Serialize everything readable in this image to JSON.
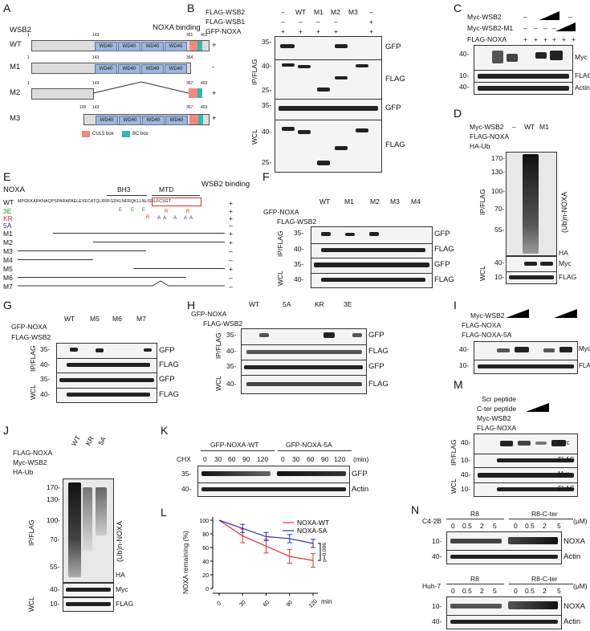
{
  "panels": {
    "A": "A",
    "B": "B",
    "C": "C",
    "D": "D",
    "E": "E",
    "F": "F",
    "G": "G",
    "H": "H",
    "I": "I",
    "J": "J",
    "K": "K",
    "L": "L",
    "M": "M",
    "N": "N"
  },
  "panelA": {
    "title": "WSB2",
    "noxa_binding": "NOXA binding",
    "rows": [
      {
        "name": "WT",
        "start": "1",
        "n143": "143",
        "c": "361",
        "e": "403",
        "bind": "+"
      },
      {
        "name": "M1",
        "start": "1",
        "n143": "143",
        "c": "364",
        "e": "",
        "bind": "-"
      },
      {
        "name": "M2",
        "start": "1",
        "n143": "143",
        "c": "367",
        "e": "403",
        "bind": "+"
      },
      {
        "name": "M3",
        "start": "100",
        "n143": "143",
        "c": "367",
        "e": "403",
        "bind": "+"
      }
    ],
    "wd": "WD40",
    "legend_cul": "CUL5 box",
    "legend_bc": "BC box"
  },
  "panelB": {
    "row1": "FLAG-WSB2",
    "row2": "FLAG-WSB1",
    "row3": "GFP-NOXA",
    "cols": [
      "WT",
      "M1",
      "M2",
      "M3",
      "–"
    ],
    "r1": [
      "–",
      "",
      "",
      "",
      ""
    ],
    "r2": [
      "–",
      "–",
      "–",
      "–",
      "+"
    ],
    "r3": [
      "+",
      "+",
      "+",
      "+",
      "+"
    ],
    "ip": "IP/FLAG",
    "wcl": "WCL",
    "gfp": "GFP",
    "flag": "FLAG",
    "mw": [
      "35-",
      "40-",
      "25-",
      "35-",
      "40-",
      "25-"
    ]
  },
  "panelC": {
    "r1": "Myc-WSB2",
    "r2": "Myc-WSB2-M1",
    "r3": "FLAG-NOXA",
    "myc": "Myc",
    "flag": "FLAG",
    "actin": "Actin",
    "mw": [
      "40-",
      "10-",
      "40-"
    ],
    "signs1": [
      "–",
      "–"
    ],
    "signs2": [
      "–",
      "–",
      "–",
      "–"
    ],
    "signs3": [
      "+",
      "+",
      "+",
      "+",
      "+",
      "+"
    ]
  },
  "panelD": {
    "r1": "Myc-WSB2",
    "r2": "FLAG-NOXA",
    "r3": "HA-Ub",
    "cols": [
      "–",
      "WT",
      "M1"
    ],
    "ip": "IP/FLAG",
    "wcl": "WCL",
    "ub": "(Ub)n-NOXA",
    "ha": "HA",
    "myc": "Myc",
    "flag": "FLAG",
    "mw": [
      "170-",
      "130-",
      "100-",
      "70-",
      "55-",
      "40-",
      "10-"
    ]
  },
  "panelE": {
    "title": "NOXA",
    "bh3": "BH3",
    "mtd": "MTD",
    "wsb2": "WSB2 binding",
    "seq_wt": "MPGKKARKNAQPSPARAPAELEVECATQLRRFGDKLNFRQKLLNLISKLFCSGT",
    "rows": [
      {
        "name": "WT",
        "bind": "+"
      },
      {
        "name": "3E",
        "bind": "+"
      },
      {
        "name": "KR",
        "bind": "+"
      },
      {
        "name": "5A",
        "bind": "–"
      },
      {
        "name": "M1",
        "bind": "+"
      },
      {
        "name": "M2",
        "bind": "+"
      },
      {
        "name": "M3",
        "bind": "–"
      },
      {
        "name": "M4",
        "bind": "–"
      },
      {
        "name": "M5",
        "bind": "+"
      },
      {
        "name": "M6",
        "bind": "–"
      },
      {
        "name": "M7",
        "bind": "–"
      }
    ],
    "e": "E",
    "r": "R",
    "a": "A"
  },
  "panelF": {
    "r1": "GFP-NOXA",
    "r2": "FLAG-WSB2",
    "cols": [
      "WT",
      "M1",
      "M2",
      "M3",
      "M4"
    ],
    "ip": "IP/FLAG",
    "wcl": "WCL",
    "gfp": "GFP",
    "flag": "FLAG",
    "mw": [
      "35-",
      "40-",
      "35-",
      "40-"
    ]
  },
  "panelG": {
    "r1": "GFP-NOXA",
    "r2": "FLAG-WSB2",
    "cols": [
      "WT",
      "M5",
      "M6",
      "M7"
    ],
    "ip": "IP/FLAG",
    "wcl": "WCL",
    "gfp": "GFP",
    "flag": "FLAG",
    "mw": [
      "35-",
      "40-",
      "35-",
      "40-"
    ]
  },
  "panelH": {
    "r1": "GFP-NOXA",
    "r2": "FLAG-WSB2",
    "cols": [
      "WT",
      "5A",
      "KR",
      "3E"
    ],
    "ip": "IP/FLAG",
    "wcl": "WCL",
    "gfp": "GFP",
    "flag": "FLAG",
    "mw": [
      "35-",
      "40-",
      "35-",
      "40-"
    ]
  },
  "panelI": {
    "r1": "Myc-WSB2",
    "r2": "FLAG-NOXA",
    "r3": "FLAG-NOXA-5A",
    "myc": "Myc",
    "flag": "FLAG",
    "actin": "Actin",
    "mw": [
      "40-",
      "10-",
      "40-"
    ]
  },
  "panelJ": {
    "r1": "FLAG-NOXA",
    "r2": "Myc-WSB2",
    "r3": "HA-Ub",
    "cols": [
      "WT",
      "KR",
      "5A"
    ],
    "ip": "IP/FLAG",
    "wcl": "WCL",
    "ub": "(Ub)n-NOXA",
    "ha": "HA",
    "myc": "Myc",
    "flag": "FLAG",
    "mw": [
      "170-",
      "130-",
      "100-",
      "70-",
      "55-",
      "40-",
      "10-"
    ]
  },
  "panelK": {
    "g1": "GFP-NOXA-WT",
    "g2": "GFP-NOXA-5A",
    "chx": "CHX",
    "times": [
      "0",
      "30",
      "60",
      "90",
      "120",
      "0",
      "30",
      "60",
      "90",
      "120"
    ],
    "unit": "(min)",
    "gfp": "GFP",
    "actin": "Actin",
    "mw": [
      "35-",
      "40-"
    ]
  },
  "panelL": {
    "ylabel": "NOXA remaining (%)",
    "xlabel": "min",
    "p": "p=0.006"
  },
  "panelM": {
    "r1": "Scr peptide",
    "r2": "C-ter peptide",
    "r3": "Myc-WSB2",
    "r4": "FLAG-NOXA",
    "ip": "IP/FLAG",
    "wcl": "WCL",
    "myc": "Myc",
    "flag": "FLAG",
    "mw": [
      "40-",
      "10-",
      "40-",
      "10-"
    ]
  },
  "panelN": {
    "c1": "C4-2B",
    "c2": "Huh-7",
    "r8": "R8",
    "r8c": "R8-C-ter",
    "um": "(μM)",
    "conc": [
      "0",
      "0.5",
      "2",
      "5",
      "0",
      "0.5",
      "2",
      "5"
    ],
    "noxa": "NOXA",
    "actin": "Actin",
    "mw": [
      "10-",
      "40-",
      "10-",
      "40-"
    ]
  },
  "chart_data": {
    "type": "line",
    "x": [
      0,
      30,
      60,
      90,
      120
    ],
    "xlabel": "min",
    "ylabel": "NOXA remaining (%)",
    "ylim": [
      0,
      100
    ],
    "yticks": [
      0,
      20,
      40,
      60,
      80,
      100
    ],
    "series": [
      {
        "name": "NOXA-WT",
        "values": [
          100,
          77,
          62,
          47,
          41
        ],
        "color": "#e03030"
      },
      {
        "name": "NOXA-5A",
        "values": [
          100,
          88,
          76,
          73,
          66
        ],
        "color": "#3030b0"
      }
    ],
    "annotation": "p=0.006"
  }
}
